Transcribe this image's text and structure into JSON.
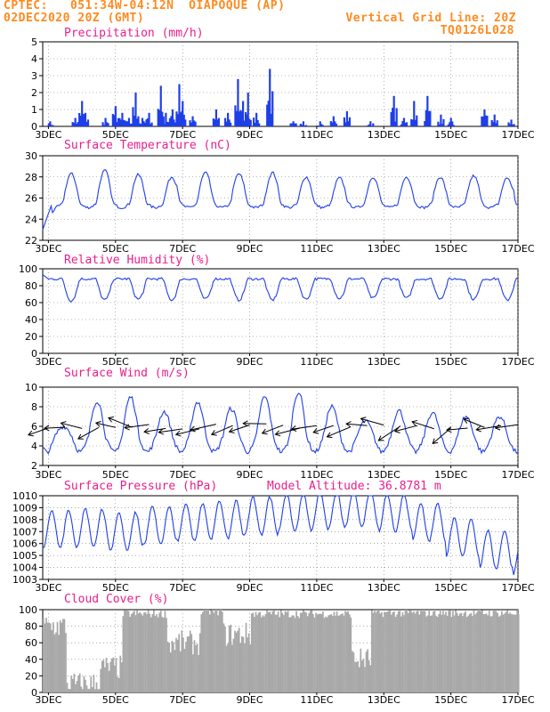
{
  "header": {
    "line1_left": "CPTEC:   051:34W-04:12N  OIAPOQUE (AP)",
    "line2_left": "02DEC2020 20Z (GMT)",
    "line1_right": "Vertical Grid Line: 20Z",
    "line2_right": "TQ0126L028"
  },
  "colors": {
    "header": "#ff8a1f",
    "title": "#e81f8a",
    "line": "#1f3fe6",
    "cloud": "#a8a8a8"
  },
  "x_ticks": [
    "3DEC",
    "5DEC",
    "7DEC",
    "9DEC",
    "11DEC",
    "13DEC",
    "15DEC",
    "17DEC"
  ],
  "chart_data": [
    {
      "type": "bar",
      "title": "Precipitation (mm/h)",
      "ylim": [
        0,
        5
      ],
      "yticks": [
        0,
        1,
        2,
        3,
        4,
        5
      ],
      "x_range_days": [
        2.83,
        17.0
      ],
      "values": [
        [
          3.05,
          0.3
        ],
        [
          3.8,
          0.5
        ],
        [
          4.0,
          1.5
        ],
        [
          4.1,
          0.8
        ],
        [
          4.7,
          0.5
        ],
        [
          5.0,
          1.2
        ],
        [
          5.2,
          0.8
        ],
        [
          5.4,
          0.5
        ],
        [
          5.6,
          2.0
        ],
        [
          5.8,
          0.5
        ],
        [
          6.0,
          0.8
        ],
        [
          6.35,
          2.4
        ],
        [
          6.5,
          0.8
        ],
        [
          6.7,
          1.0
        ],
        [
          6.9,
          2.5
        ],
        [
          7.0,
          1.5
        ],
        [
          7.3,
          0.6
        ],
        [
          8.0,
          1.0
        ],
        [
          8.35,
          0.8
        ],
        [
          8.65,
          2.8
        ],
        [
          8.8,
          1.5
        ],
        [
          8.95,
          2.0
        ],
        [
          9.2,
          0.8
        ],
        [
          9.6,
          3.4
        ],
        [
          10.3,
          0.3
        ],
        [
          10.6,
          0.3
        ],
        [
          11.1,
          0.3
        ],
        [
          11.5,
          0.6
        ],
        [
          11.9,
          0.9
        ],
        [
          12.6,
          0.3
        ],
        [
          13.3,
          1.8
        ],
        [
          13.6,
          0.5
        ],
        [
          13.9,
          1.5
        ],
        [
          14.3,
          1.8
        ],
        [
          14.7,
          0.7
        ],
        [
          15.0,
          0.5
        ],
        [
          16.0,
          1.0
        ],
        [
          16.3,
          0.7
        ],
        [
          16.8,
          0.4
        ]
      ],
      "series_name": ""
    },
    {
      "type": "line",
      "title": "Surface Temperature (nC)",
      "ylim": [
        22,
        30
      ],
      "yticks": [
        22,
        24,
        26,
        28,
        30
      ],
      "min": 23.0,
      "max": 28.8,
      "phase": 0.68,
      "series": [
        {
          "name": "",
          "peaks": [
            28.3,
            28.6,
            28.2,
            28.0,
            28.4,
            28.3,
            28.4,
            28.0,
            27.9,
            28.0,
            28.0,
            28.0,
            28.1,
            27.9,
            28.8
          ]
        }
      ]
    },
    {
      "type": "line",
      "title": "Relative Humidity (%)",
      "ylim": [
        0,
        100
      ],
      "yticks": [
        0,
        20,
        40,
        60,
        80,
        100
      ],
      "min": 60,
      "max": 95,
      "phase": 0.68,
      "series": [
        {
          "name": "",
          "troughs": [
            62,
            63,
            64,
            63,
            64,
            63,
            63,
            64,
            65,
            65,
            65,
            65,
            64,
            63,
            62
          ]
        }
      ]
    },
    {
      "type": "line",
      "title": "Surface Wind (m/s)",
      "ylim": [
        2,
        10
      ],
      "yticks": [
        2,
        4,
        6,
        8,
        10
      ],
      "min": 2.8,
      "max": 9.5,
      "phase": 0.45,
      "series": [
        {
          "name": "",
          "peaks": [
            6.0,
            8.6,
            9.0,
            7.5,
            8.5,
            7.8,
            9.0,
            9.5,
            8.0,
            6.5,
            7.6,
            7.4,
            7.0,
            7.0,
            7.6
          ]
        }
      ],
      "arrow_days": [
        3.0,
        3.5,
        4.0,
        4.5,
        5.0,
        5.5,
        6.0,
        6.5,
        7.0,
        7.5,
        8.0,
        8.5,
        9.0,
        9.5,
        10.0,
        10.5,
        11.0,
        11.5,
        12.0,
        12.5,
        13.0,
        13.5,
        14.0,
        14.5,
        15.0,
        15.5,
        16.0,
        16.5,
        17.0
      ]
    },
    {
      "type": "line",
      "title": "Surface Pressure (hPa)",
      "annotation": "Model Altitude: 36.8781 m",
      "ylim": [
        1003,
        1010
      ],
      "yticks": [
        1003,
        1004,
        1005,
        1006,
        1007,
        1008,
        1009,
        1010
      ],
      "min": 1003.2,
      "max": 1010.0,
      "phase": 0.1,
      "series": [
        {
          "name": "",
          "levels": [
            1007.2,
            1007.3,
            1007.0,
            1007.5,
            1007.8,
            1008.0,
            1008.3,
            1008.6,
            1008.8,
            1009.0,
            1008.6,
            1007.8,
            1006.5,
            1005.5,
            1005.0,
            1004.8
          ]
        }
      ]
    },
    {
      "type": "area",
      "title": "Cloud Cover (%)",
      "ylim": [
        0,
        100
      ],
      "yticks": [
        0,
        20,
        40,
        60,
        80,
        100
      ],
      "segments": [
        [
          2.83,
          3.5,
          80
        ],
        [
          3.5,
          4.5,
          10
        ],
        [
          4.5,
          5.2,
          30
        ],
        [
          5.2,
          6.5,
          95
        ],
        [
          6.5,
          7.5,
          60
        ],
        [
          7.5,
          8.2,
          98
        ],
        [
          8.2,
          9.0,
          70
        ],
        [
          9.0,
          12.0,
          95
        ],
        [
          12.0,
          12.6,
          40
        ],
        [
          12.6,
          17.0,
          96
        ]
      ]
    }
  ]
}
